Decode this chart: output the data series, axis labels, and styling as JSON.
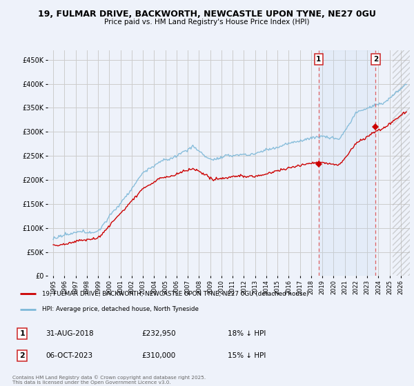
{
  "title1": "19, FULMAR DRIVE, BACKWORTH, NEWCASTLE UPON TYNE, NE27 0GU",
  "title2": "Price paid vs. HM Land Registry's House Price Index (HPI)",
  "ylabel_ticks": [
    "£0",
    "£50K",
    "£100K",
    "£150K",
    "£200K",
    "£250K",
    "£300K",
    "£350K",
    "£400K",
    "£450K"
  ],
  "ylabel_values": [
    0,
    50000,
    100000,
    150000,
    200000,
    250000,
    300000,
    350000,
    400000,
    450000
  ],
  "ylim": [
    0,
    470000
  ],
  "xlim_start": 1994.5,
  "xlim_end": 2026.8,
  "hpi_color": "#7db8d8",
  "price_color": "#cc0000",
  "grid_color": "#cccccc",
  "bg_color": "#eef2fa",
  "marker1_x": 2018.67,
  "marker1_y": 232950,
  "marker2_x": 2023.75,
  "marker2_y": 310000,
  "marker1_label": "1",
  "marker2_label": "2",
  "marker1_date": "31-AUG-2018",
  "marker1_price": "£232,950",
  "marker1_hpi": "18% ↓ HPI",
  "marker2_date": "06-OCT-2023",
  "marker2_price": "£310,000",
  "marker2_hpi": "15% ↓ HPI",
  "legend1": "19, FULMAR DRIVE, BACKWORTH, NEWCASTLE UPON TYNE, NE27 0GU (detached house)",
  "legend2": "HPI: Average price, detached house, North Tyneside",
  "footnote": "Contains HM Land Registry data © Crown copyright and database right 2025.\nThis data is licensed under the Open Government Licence v3.0.",
  "dashed_line_color": "#e06060",
  "future_start": 2025.25,
  "shade_start": 2018.67,
  "shade_end": 2023.75
}
